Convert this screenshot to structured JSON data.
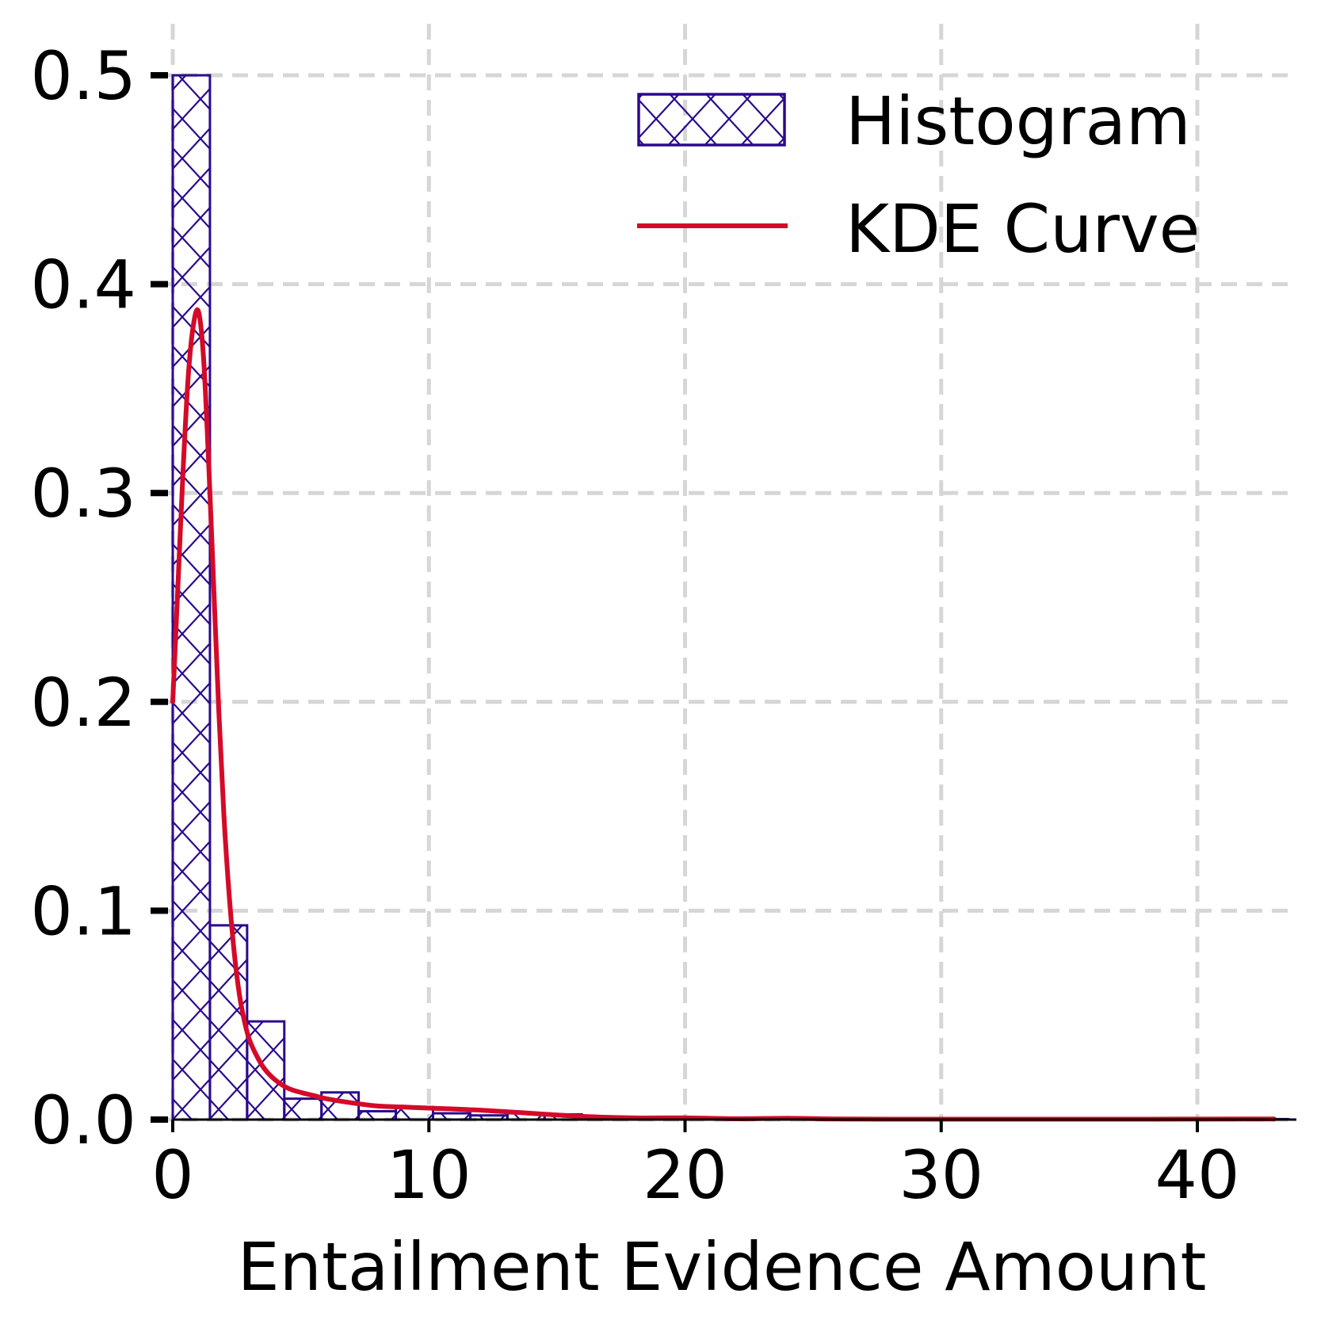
{
  "chart_data": {
    "type": "bar",
    "title": "",
    "xlabel": "Entailment Evidence Amount",
    "ylabel": "",
    "xlim": [
      -0.5,
      44
    ],
    "ylim": [
      0,
      0.52
    ],
    "x_ticks": [
      0,
      10,
      20,
      30,
      40
    ],
    "y_ticks": [
      0.0,
      0.1,
      0.2,
      0.3,
      0.4,
      0.5
    ],
    "x_tick_labels": [
      "0",
      "10",
      "20",
      "30",
      "40"
    ],
    "y_tick_labels": [
      "0.0",
      "0.1",
      "0.2",
      "0.3",
      "0.4",
      "0.5"
    ],
    "grid": true,
    "legend_position": "top-right",
    "series": [
      {
        "name": "Histogram",
        "kind": "histogram",
        "bin_width": 1.4516,
        "bin_start": 0,
        "values": [
          0.5,
          0.093,
          0.047,
          0.01,
          0.013,
          0.004,
          0.006,
          0.003,
          0.002,
          0.003,
          0.0025,
          0.0015,
          0.001,
          0.0008,
          0.0005,
          0.0004,
          0.0003,
          0.0003,
          0.0002,
          0.0002,
          0.0002,
          0.0001,
          0.0001,
          0.0001,
          0.0001,
          0.0001,
          0.0001,
          0.0001,
          0.0001,
          0.0002
        ],
        "color": "#2b0a8c"
      },
      {
        "name": "KDE Curve",
        "kind": "line",
        "x": [
          0,
          0.2,
          0.4,
          0.6,
          0.8,
          1.0,
          1.2,
          1.4,
          1.6,
          1.8,
          2.0,
          2.2,
          2.4,
          2.6,
          2.8,
          3.0,
          3.3,
          3.6,
          4.0,
          4.5,
          5.0,
          5.5,
          6.0,
          7.0,
          8.0,
          9.0,
          10.0,
          12.0,
          14.0,
          16.0,
          18.0,
          20.0,
          22.0,
          24.0,
          26.0,
          28.0,
          30.0,
          34.0,
          38.0,
          42.0,
          43.0
        ],
        "y": [
          0.2,
          0.255,
          0.31,
          0.355,
          0.38,
          0.387,
          0.365,
          0.315,
          0.255,
          0.195,
          0.145,
          0.108,
          0.08,
          0.06,
          0.047,
          0.038,
          0.03,
          0.024,
          0.019,
          0.015,
          0.013,
          0.0115,
          0.01,
          0.008,
          0.0065,
          0.006,
          0.0055,
          0.0045,
          0.003,
          0.0015,
          0.0008,
          0.0008,
          0.0004,
          0.0006,
          0.0003,
          0.0002,
          0.0002,
          0.0002,
          0.0002,
          0.0003,
          0.0003
        ],
        "color": "#d40a28"
      }
    ]
  }
}
